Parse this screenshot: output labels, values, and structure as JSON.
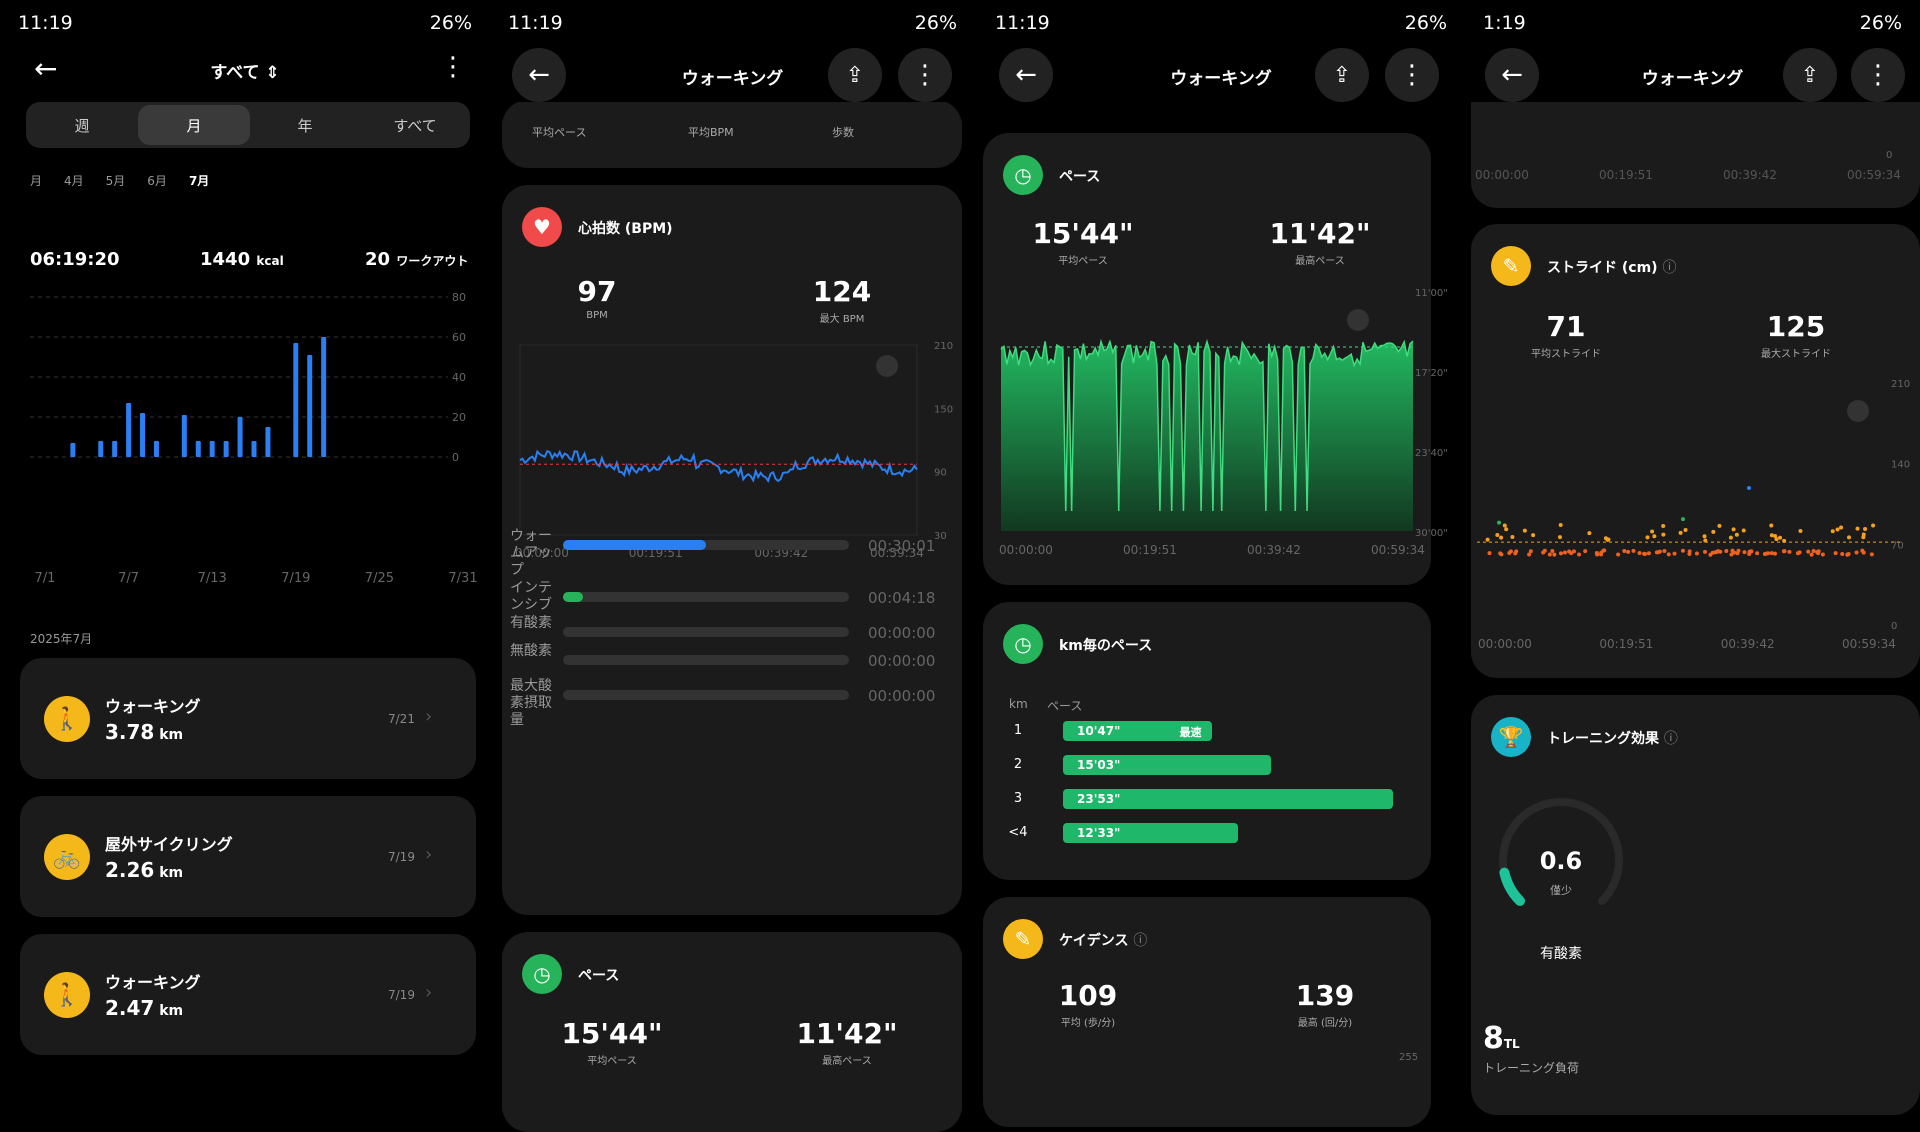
{
  "status": {
    "time1": "11:19",
    "time2": "11:19",
    "time3": "11:19",
    "time4": "1:19",
    "battery": "26%"
  },
  "p1": {
    "title": "すべて",
    "tabs": [
      "週",
      "月",
      "年",
      "すべて"
    ],
    "months": [
      "月",
      "4月",
      "5月",
      "6月",
      "7月"
    ],
    "summary": {
      "time": "06:19:20",
      "kcal": "1440",
      "kcal_unit": "kcal",
      "workouts": "20",
      "workouts_unit": "ワークアウト"
    },
    "chart_data": {
      "type": "bar",
      "x": [
        "7/1",
        "7/7",
        "7/13",
        "7/19",
        "7/25",
        "7/31"
      ],
      "yticks": [
        "80",
        "60",
        "40",
        "20",
        "0"
      ],
      "ylim": [
        0,
        80
      ],
      "values": [
        [
          3,
          7
        ],
        [
          5,
          8
        ],
        [
          6,
          8
        ],
        [
          7,
          27
        ],
        [
          8,
          22
        ],
        [
          9,
          8
        ],
        [
          11,
          21
        ],
        [
          12,
          8
        ],
        [
          13,
          8
        ],
        [
          14,
          8
        ],
        [
          15,
          20
        ],
        [
          16,
          8
        ],
        [
          17,
          15
        ],
        [
          19,
          57
        ],
        [
          20,
          51
        ],
        [
          21,
          60
        ]
      ]
    },
    "month_label": "2025年7月",
    "workouts": [
      {
        "name": "ウォーキング",
        "value": "3.78",
        "unit": "km",
        "date": "7/21",
        "icon": "walking-icon"
      },
      {
        "name": "屋外サイクリング",
        "value": "2.26",
        "unit": "km",
        "date": "7/19",
        "icon": "cycling-icon"
      },
      {
        "name": "ウォーキング",
        "value": "2.47",
        "unit": "km",
        "date": "7/19",
        "icon": "walking-icon"
      }
    ]
  },
  "p2": {
    "title": "ウォーキング",
    "top_labels": [
      "平均ペース",
      "平均BPM",
      "歩数"
    ],
    "hr": {
      "title": "心拍数 (BPM)",
      "avg": "97",
      "avg_label": "BPM",
      "max": "124",
      "max_label": "最大 BPM",
      "yticks": [
        "210",
        "150",
        "90",
        "30"
      ],
      "xticks": [
        "00:00:00",
        "00:19:51",
        "00:39:42",
        "00:59:34"
      ]
    },
    "zones": [
      {
        "label": "ウォームアップ",
        "time": "00:30:01",
        "fill": 0.5,
        "color": "#2a7ff2"
      },
      {
        "label": "インテンシブ",
        "time": "00:04:18",
        "fill": 0.07,
        "color": "#26b35a"
      },
      {
        "label": "有酸素",
        "time": "00:00:00",
        "fill": 0,
        "color": "#f0a020"
      },
      {
        "label": "無酸素",
        "time": "00:00:00",
        "fill": 0,
        "color": "#f06020"
      },
      {
        "label": "最大酸素摂取量",
        "time": "00:00:00",
        "fill": 0,
        "color": "#e03030"
      }
    ],
    "pace": {
      "title": "ペース",
      "avg": "15'44\"",
      "avg_label": "平均ペース",
      "max": "11'42\"",
      "max_label": "最高ペース"
    }
  },
  "p3": {
    "title": "ウォーキング",
    "pace": {
      "title": "ペース",
      "avg": "15'44\"",
      "avg_label": "平均ペース",
      "max": "11'42\"",
      "max_label": "最高ペース",
      "yticks": [
        "11'00\"",
        "17'20\"",
        "23'40\"",
        "30'00\""
      ],
      "xticks": [
        "00:00:00",
        "00:19:51",
        "00:39:42",
        "00:59:34"
      ]
    },
    "km": {
      "title": "km毎のペース",
      "col1": "km",
      "col2": "ペース",
      "rows": [
        {
          "km": "1",
          "pace": "10'47\"",
          "fill": 0.45,
          "tag": "最速"
        },
        {
          "km": "2",
          "pace": "15'03\"",
          "fill": 0.63,
          "tag": ""
        },
        {
          "km": "3",
          "pace": "23'53\"",
          "fill": 1.0,
          "tag": ""
        },
        {
          "km": "<4",
          "pace": "12'33\"",
          "fill": 0.53,
          "tag": ""
        }
      ]
    },
    "cad": {
      "title": "ケイデンス",
      "avg": "109",
      "avg_label": "平均 (歩/分)",
      "max": "139",
      "max_label": "最高 (回/分)",
      "ytop": "255"
    }
  },
  "p4": {
    "title": "ウォーキング",
    "top_xticks": [
      "00:00:00",
      "00:19:51",
      "00:39:42",
      "00:59:34"
    ],
    "top_y0": "0",
    "stride": {
      "title": "ストライド (cm)",
      "avg": "71",
      "avg_label": "平均ストライド",
      "max": "125",
      "max_label": "最大ストライド",
      "yticks": [
        "210",
        "140",
        "70",
        "0"
      ],
      "xticks": [
        "00:00:00",
        "00:19:51",
        "00:39:42",
        "00:59:34"
      ]
    },
    "train": {
      "title": "トレーニング効果",
      "value": "0.6",
      "level": "僅少",
      "type": "有酸素",
      "gauge": 0.12,
      "tl": "8",
      "tl_unit": "TL",
      "tl_label": "トレーニング負荷"
    }
  }
}
